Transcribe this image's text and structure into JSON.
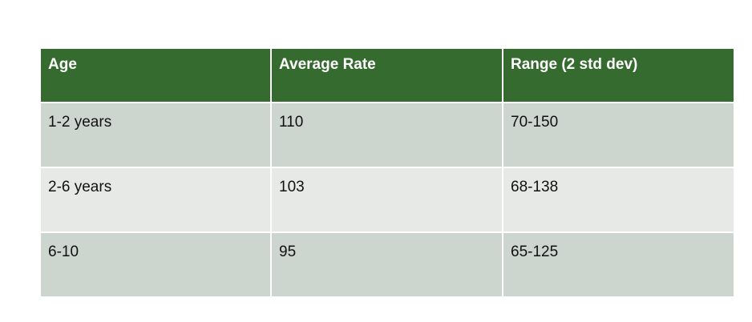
{
  "table": {
    "header": [
      "Age",
      "Average Rate",
      "Range (2 std dev)"
    ],
    "rows": [
      [
        "1-2 years",
        110,
        "70-150"
      ],
      [
        "2-6 years",
        103,
        "68-138"
      ],
      [
        "6-10",
        95,
        "65-125"
      ]
    ]
  }
}
